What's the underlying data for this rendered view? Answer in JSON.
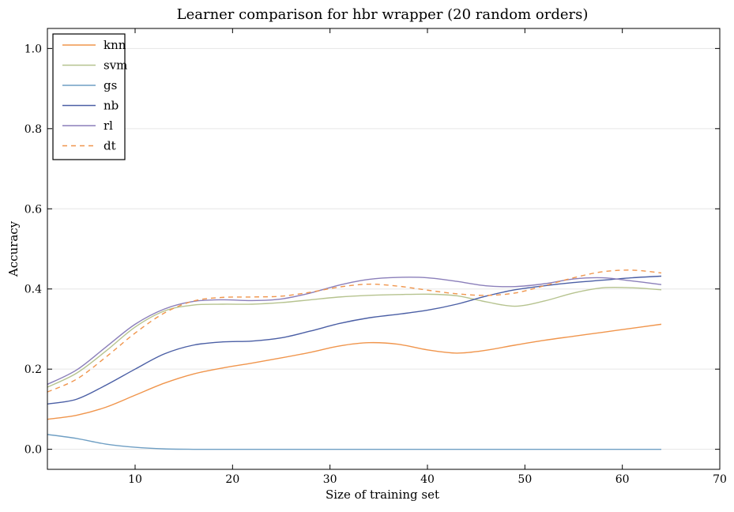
{
  "chart_data": {
    "type": "line",
    "title": "Learner comparison for hbr wrapper (20 random orders)",
    "xlabel": "Size of training set",
    "ylabel": "Accuracy",
    "xlim": [
      1,
      70
    ],
    "ylim": [
      -0.05,
      1.05
    ],
    "xticks": [
      10,
      20,
      30,
      40,
      50,
      60,
      70
    ],
    "yticks": [
      0.0,
      0.2,
      0.4,
      0.6,
      0.8,
      1.0
    ],
    "xtick_labels": [
      "10",
      "20",
      "30",
      "40",
      "50",
      "60",
      "70"
    ],
    "ytick_labels": [
      "0.0",
      "0.2",
      "0.4",
      "0.6",
      "0.8",
      "1.0"
    ],
    "grid": "horizontal",
    "legend_position": "top-left",
    "x": [
      1,
      4,
      7,
      10,
      13,
      16,
      19,
      22,
      25,
      28,
      31,
      34,
      37,
      40,
      43,
      46,
      49,
      52,
      55,
      58,
      61,
      64
    ],
    "series": [
      {
        "name": "knn",
        "color": "#f0954c",
        "dash": "solid",
        "values": [
          0.075,
          0.085,
          0.105,
          0.135,
          0.165,
          0.188,
          0.203,
          0.215,
          0.228,
          0.242,
          0.258,
          0.266,
          0.262,
          0.248,
          0.24,
          0.247,
          0.26,
          0.272,
          0.282,
          0.292,
          0.302,
          0.312
        ]
      },
      {
        "name": "svm",
        "color": "#b6c38f",
        "dash": "solid",
        "values": [
          0.155,
          0.19,
          0.245,
          0.305,
          0.345,
          0.36,
          0.362,
          0.362,
          0.366,
          0.373,
          0.38,
          0.384,
          0.386,
          0.387,
          0.383,
          0.368,
          0.357,
          0.37,
          0.39,
          0.403,
          0.403,
          0.398
        ]
      },
      {
        "name": "gs",
        "color": "#6f9fc4",
        "dash": "solid",
        "values": [
          0.037,
          0.027,
          0.013,
          0.005,
          0.001,
          0.0,
          0.0,
          0.0,
          0.0,
          0.0,
          0.0,
          0.0,
          0.0,
          0.0,
          0.0,
          0.0,
          0.0,
          0.0,
          0.0,
          0.0,
          0.0,
          0.0
        ]
      },
      {
        "name": "nb",
        "color": "#4b5fa5",
        "dash": "solid",
        "values": [
          0.113,
          0.125,
          0.16,
          0.2,
          0.238,
          0.26,
          0.268,
          0.27,
          0.278,
          0.295,
          0.314,
          0.328,
          0.337,
          0.347,
          0.362,
          0.382,
          0.398,
          0.408,
          0.416,
          0.422,
          0.428,
          0.432
        ]
      },
      {
        "name": "rl",
        "color": "#8b7fba",
        "dash": "solid",
        "values": [
          0.162,
          0.198,
          0.255,
          0.312,
          0.35,
          0.369,
          0.373,
          0.371,
          0.375,
          0.39,
          0.41,
          0.424,
          0.429,
          0.428,
          0.419,
          0.408,
          0.406,
          0.413,
          0.425,
          0.428,
          0.42,
          0.411
        ]
      },
      {
        "name": "dt",
        "color": "#f0954c",
        "dash": "dashed",
        "values": [
          0.143,
          0.175,
          0.23,
          0.29,
          0.34,
          0.37,
          0.379,
          0.38,
          0.382,
          0.392,
          0.405,
          0.412,
          0.407,
          0.397,
          0.388,
          0.384,
          0.39,
          0.408,
          0.428,
          0.443,
          0.447,
          0.44
        ]
      }
    ]
  }
}
